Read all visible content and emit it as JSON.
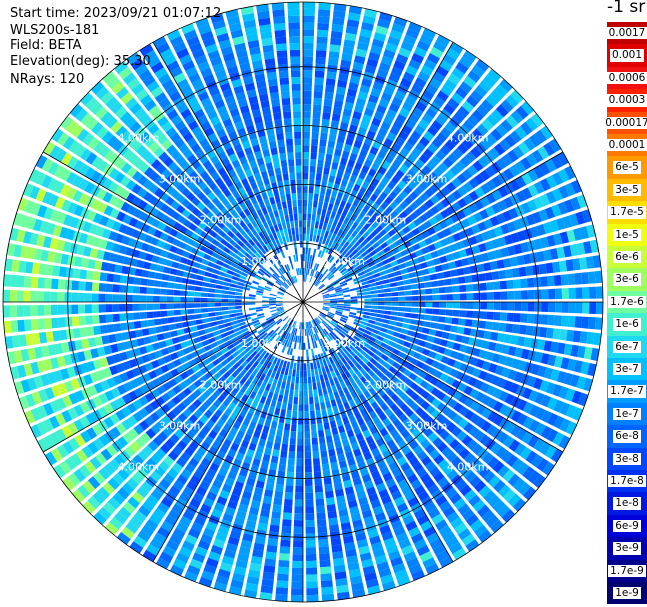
{
  "header": {
    "start_time": "Start time: 2023/09/21 01:07:12",
    "instrument": "WLS200s-181",
    "field": "Field: BETA",
    "elevation": "Elevation(deg): 35.30",
    "nrays": "NRays: 120"
  },
  "colorbar": {
    "unit": "-1 sr",
    "labels": [
      "0.0017",
      "0.001",
      "0.0006",
      "0.0003",
      "0.00017",
      "0.0001",
      "6e-5",
      "3e-5",
      "1.7e-5",
      "1e-5",
      "6e-6",
      "3e-6",
      "1.7e-6",
      "1e-6",
      "6e-7",
      "3e-7",
      "1.7e-7",
      "1e-7",
      "6e-8",
      "3e-8",
      "1.7e-8",
      "1e-8",
      "6e-9",
      "3e-9",
      "1.7e-9",
      "1e-9"
    ],
    "colors": [
      "#c00000",
      "#e00000",
      "#f01010",
      "#ff2000",
      "#ff5000",
      "#ff7800",
      "#ff9a00",
      "#ffbb00",
      "#ffdd00",
      "#f0ff10",
      "#c8ff38",
      "#a0ff60",
      "#70ffa0",
      "#40f0d0",
      "#20d8f0",
      "#00c0ff",
      "#009cff",
      "#0080ff",
      "#0064ff",
      "#0048ff",
      "#0030f0",
      "#0018e0",
      "#0000d8",
      "#0000b0",
      "#00008c",
      "#000070"
    ]
  },
  "chart_data": {
    "type": "heatmap",
    "projection": "polar (PPI scan)",
    "field": "BETA",
    "instrument": "WLS200s-181",
    "start_time": "2023/09/21 01:07:12",
    "elevation_deg": 35.3,
    "n_rays": 120,
    "range_rings_km": [
      1.0,
      2.0,
      3.0,
      4.0
    ],
    "range_ring_labels": [
      "1.00km",
      "2.00km",
      "3.00km",
      "4.00km"
    ],
    "max_range_km": 5.1,
    "value_range": [
      1e-09,
      0.0017
    ],
    "color_scale": "log",
    "dominant_values": "mostly 1e-8 to 1e-7 (blue / cyan), higher ~6e-7 to 1e-6 (green-yellow) near west edge at 3.5-5 km"
  }
}
